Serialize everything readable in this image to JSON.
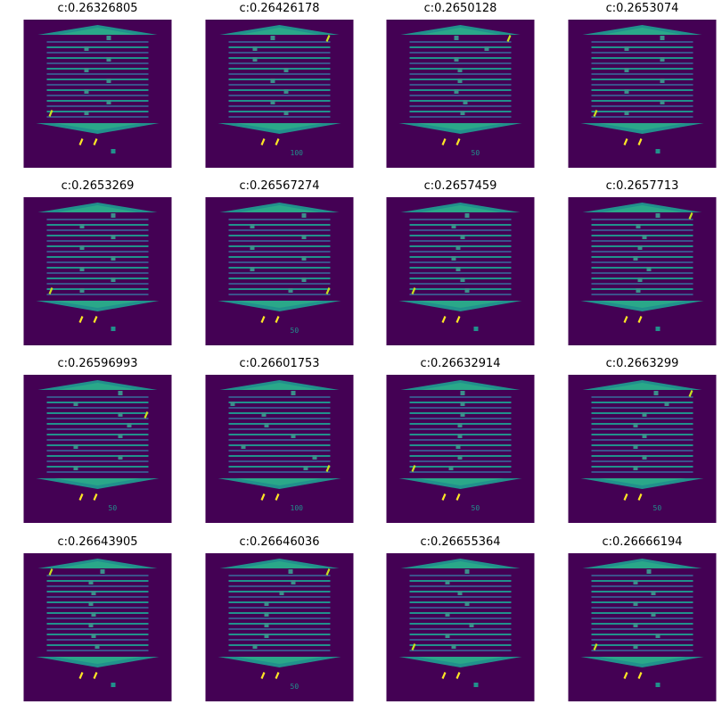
{
  "colors": {
    "background": "#440154",
    "shelf_dark": "#3b528b",
    "shelf_light": "#21918c",
    "shelf_bright": "#2aa889",
    "enemy": "#3b8f8b",
    "player": "#c8e020",
    "player_alt": "#fde725"
  },
  "frames": [
    {
      "title": "c:0.26326805",
      "score": ""
    },
    {
      "title": "c:0.26426178",
      "score": "100"
    },
    {
      "title": "c:0.2650128",
      "score": "50"
    },
    {
      "title": "c:0.2653074",
      "score": ""
    },
    {
      "title": "c:0.2653269",
      "score": ""
    },
    {
      "title": "c:0.26567274",
      "score": "50"
    },
    {
      "title": "c:0.2657459",
      "score": ""
    },
    {
      "title": "c:0.2657713",
      "score": ""
    },
    {
      "title": "c:0.26596993",
      "score": "50"
    },
    {
      "title": "c:0.26601753",
      "score": "100"
    },
    {
      "title": "c:0.26632914",
      "score": "50"
    },
    {
      "title": "c:0.2663299",
      "score": "50"
    },
    {
      "title": "c:0.26643905",
      "score": ""
    },
    {
      "title": "c:0.26646036",
      "score": "50"
    },
    {
      "title": "c:0.26655364",
      "score": ""
    },
    {
      "title": "c:0.26666194",
      "score": ""
    }
  ]
}
